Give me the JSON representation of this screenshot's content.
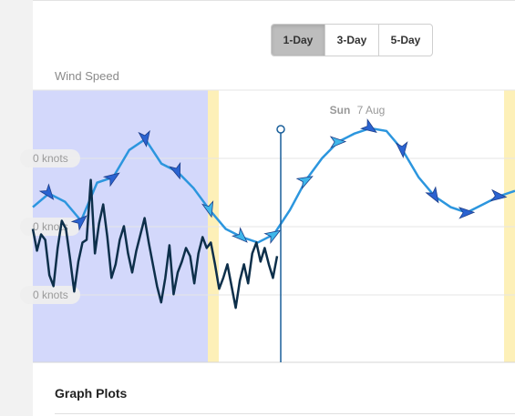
{
  "range_buttons": [
    {
      "label": "1-Day",
      "active": true
    },
    {
      "label": "3-Day",
      "active": false
    },
    {
      "label": "5-Day",
      "active": false
    }
  ],
  "chart": {
    "title": "Wind Speed",
    "day_label": {
      "day": "Sun",
      "date": "7 Aug"
    },
    "y_tick_labels": [
      "0 knots",
      "0 knots",
      "0 knots"
    ],
    "colors": {
      "night_shading": "#d3d8fb",
      "twilight_band": "#fdf0b8",
      "observed_line": "#0d2f4a",
      "forecast_line": "#2c96de",
      "now_marker": "#1a5f9a"
    }
  },
  "chart_data": {
    "type": "line",
    "series": [
      {
        "values": [
          57,
          62,
          59,
          52,
          66,
          68,
          78,
          82,
          73,
          70,
          64,
          56,
          49,
          46,
          44,
          47,
          56,
          67,
          75,
          81,
          84,
          86,
          85,
          78,
          68,
          61,
          57,
          55,
          58,
          61,
          63
        ]
      },
      {
        "values": [
          49,
          41,
          47,
          45,
          32,
          28,
          42,
          52,
          49,
          38,
          26,
          37,
          44,
          45,
          67,
          40,
          51,
          58,
          46,
          31,
          36,
          45,
          50,
          40,
          33,
          41,
          47,
          53,
          44,
          36,
          28,
          22,
          31,
          43,
          25,
          33,
          37,
          42,
          39,
          29,
          40,
          46,
          42,
          44,
          36,
          27,
          31,
          36,
          28,
          20,
          30,
          36,
          29,
          40,
          44,
          37,
          42,
          36,
          31,
          39
        ]
      }
    ]
  },
  "footer": {
    "section_title": "Graph Plots"
  }
}
